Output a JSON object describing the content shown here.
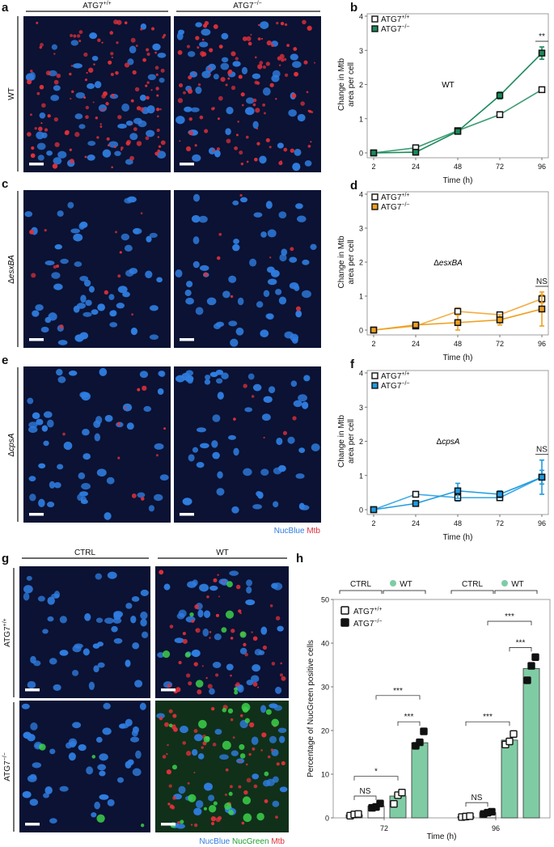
{
  "panels": {
    "a": {
      "letter": "a",
      "col1": "ATG7",
      "col1_sup": "+/+",
      "col2": "ATG7",
      "col2_sup": "−/−",
      "row_label": "WT"
    },
    "c": {
      "letter": "c",
      "row_label_prefix": "Δ",
      "row_label_italic": "esxBA"
    },
    "e": {
      "letter": "e",
      "row_label_prefix": "Δ",
      "row_label_italic": "cpsA",
      "legend_nucblue": "NucBlue",
      "legend_mtb": "Mtb"
    },
    "g": {
      "letter": "g",
      "col1": "CTRL",
      "col2": "WT",
      "row1_main": "ATG7",
      "row1_sup": "+/+",
      "row2_main": "ATG7",
      "row2_sup": "−/−",
      "legend_nucblue": "NucBlue",
      "legend_nucgreen": "NucGreen",
      "legend_mtb": "Mtb"
    },
    "h": {
      "letter": "h"
    }
  },
  "colors": {
    "nucblue": "#2f7de0",
    "mtb": "#e0303a",
    "nucgreen": "#3cd04a",
    "wt_series": "#1a8a5a",
    "esx_series": "#f0a020",
    "cps_series": "#1e9be0",
    "bar_fill": "#7fcca4"
  },
  "chart_data": [
    {
      "letter": "b",
      "type": "line",
      "x": [
        2,
        24,
        48,
        72,
        96
      ],
      "xlabel": "Time (h)",
      "ylabel_lines": [
        "Change in Mtb",
        "area per cell"
      ],
      "ylim": [
        0,
        4
      ],
      "yticks": [
        0,
        1,
        2,
        3,
        4
      ],
      "annotation": {
        "text": "WT",
        "italic_prefix": ""
      },
      "legend": [
        {
          "main": "ATG7",
          "sup": "+/+"
        },
        {
          "main": "ATG7",
          "sup": "−/−"
        }
      ],
      "series": [
        {
          "name": "ATG7+/+",
          "values": [
            0.0,
            0.15,
            0.65,
            1.12,
            1.85
          ],
          "err": [
            0,
            0,
            0,
            0,
            0
          ]
        },
        {
          "name": "ATG7−/−",
          "values": [
            0.0,
            0.02,
            0.63,
            1.68,
            2.92
          ],
          "err": [
            0,
            0.02,
            0.03,
            0.1,
            0.18
          ]
        }
      ],
      "sig": {
        "text": "**",
        "x": 96
      }
    },
    {
      "letter": "d",
      "type": "line",
      "x": [
        2,
        24,
        48,
        72,
        96
      ],
      "xlabel": "Time (h)",
      "ylabel_lines": [
        "Change in Mtb",
        "area per cell"
      ],
      "ylim": [
        0,
        4
      ],
      "yticks": [
        0,
        1,
        2,
        3,
        4
      ],
      "annotation": {
        "text": "esxBA",
        "italic_prefix": "Δ"
      },
      "legend": [
        {
          "main": "ATG7",
          "sup": "+/+"
        },
        {
          "main": "ATG7",
          "sup": "−/−"
        }
      ],
      "series": [
        {
          "name": "ATG7+/+",
          "values": [
            0.0,
            0.12,
            0.55,
            0.45,
            0.92
          ],
          "err": [
            0,
            0.04,
            0.1,
            0.08,
            0.12
          ]
        },
        {
          "name": "ATG7−/−",
          "values": [
            0.0,
            0.15,
            0.22,
            0.3,
            0.62
          ],
          "err": [
            0,
            0.07,
            0.22,
            0.15,
            0.5
          ]
        }
      ],
      "sig": {
        "text": "NS",
        "x": 96
      }
    },
    {
      "letter": "f",
      "type": "line",
      "x": [
        2,
        24,
        48,
        72,
        96
      ],
      "xlabel": "Time (h)",
      "ylabel_lines": [
        "Change in Mtb",
        "area per cell"
      ],
      "ylim": [
        0,
        4
      ],
      "yticks": [
        0,
        1,
        2,
        3,
        4
      ],
      "annotation": {
        "text": "cpsA",
        "italic_prefix": "Δ"
      },
      "legend": [
        {
          "main": "ATG7",
          "sup": "+/+"
        },
        {
          "main": "ATG7",
          "sup": "−/−"
        }
      ],
      "series": [
        {
          "name": "ATG7+/+",
          "values": [
            0.0,
            0.45,
            0.35,
            0.35,
            0.95
          ],
          "err": [
            0,
            0.05,
            0.1,
            0.08,
            0.2
          ]
        },
        {
          "name": "ATG7−/−",
          "values": [
            0.0,
            0.18,
            0.55,
            0.45,
            0.95
          ],
          "err": [
            0,
            0.05,
            0.22,
            0.1,
            0.5
          ]
        }
      ],
      "sig": {
        "text": "NS",
        "x": 96
      }
    },
    {
      "letter": "h",
      "type": "bar",
      "xlabel": "Time (h)",
      "ylabel": "Percentage of NucGreen positive cells",
      "ylim": [
        0,
        50
      ],
      "yticks": [
        0,
        10,
        20,
        30,
        40,
        50
      ],
      "groups": [
        "72",
        "96"
      ],
      "conditions": [
        "CTRL",
        "WT"
      ],
      "legend": [
        {
          "main": "ATG7",
          "sup": "+/+"
        },
        {
          "main": "ATG7",
          "sup": "−/−"
        }
      ],
      "bars": [
        {
          "group": "72",
          "condition": "CTRL",
          "genotype": "ATG7+/+",
          "value": 0.7,
          "points": [
            0.5,
            0.8,
            0.9
          ]
        },
        {
          "group": "72",
          "condition": "CTRL",
          "genotype": "ATG7−/−",
          "value": 2.7,
          "points": [
            2.3,
            2.5,
            3.3
          ]
        },
        {
          "group": "72",
          "condition": "WT",
          "genotype": "ATG7+/+",
          "value": 5.0,
          "points": [
            3.2,
            5.2,
            5.8
          ]
        },
        {
          "group": "72",
          "condition": "WT",
          "genotype": "ATG7−/−",
          "value": 17.2,
          "points": [
            16.5,
            17.3,
            19.8
          ]
        },
        {
          "group": "96",
          "condition": "CTRL",
          "genotype": "ATG7+/+",
          "value": 0.3,
          "points": [
            0.2,
            0.3,
            0.4
          ]
        },
        {
          "group": "96",
          "condition": "CTRL",
          "genotype": "ATG7−/−",
          "value": 1.2,
          "points": [
            0.9,
            1.2,
            1.4
          ]
        },
        {
          "group": "96",
          "condition": "WT",
          "genotype": "ATG7+/+",
          "value": 17.8,
          "points": [
            16.8,
            17.5,
            19.2
          ]
        },
        {
          "group": "96",
          "condition": "WT",
          "genotype": "ATG7−/−",
          "value": 34.2,
          "points": [
            31.5,
            34.8,
            36.8
          ]
        }
      ],
      "significance": [
        "NS",
        "*",
        "***",
        "***",
        "NS",
        "***",
        "***",
        "***"
      ]
    }
  ]
}
